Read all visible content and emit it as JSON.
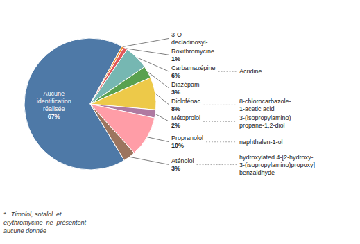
{
  "chart_data": {
    "type": "pie",
    "categories": [
      "Aucune\nidentification\nréalisée",
      "3-O-\ndecladinosyl-",
      "Roxithromycine",
      "Carbamazépine",
      "Diazépam",
      "Diclofénac",
      "Métoprolol",
      "Propranolol",
      "Aténolol"
    ],
    "values": [
      67,
      0.5,
      1,
      6,
      3,
      8,
      2,
      10,
      3
    ],
    "value_labels": [
      "67%",
      null,
      "1%",
      "6%",
      "3%",
      "8%",
      "2%",
      "10%",
      "3%"
    ],
    "annotations": [
      "Acridine",
      "8-chlorocarbazole-\n1-acetic acid",
      "3-(isopropylamino)\npropane-1,2-diol",
      "naphthalen-1-ol",
      "hydroxylated 4-[2-hydroxy-\n3-(isopropylamino)propoxy]\nbenzaldhyde"
    ],
    "footnote": [
      "*   Timolol, sotalol  et",
      "erythromycine  ne  présentent",
      "aucune donnée"
    ]
  }
}
